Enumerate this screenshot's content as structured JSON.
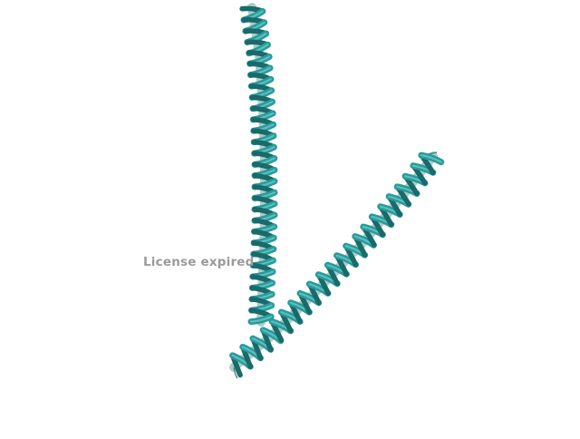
{
  "scene": {
    "background_color": "#ffffff",
    "ribbon_color": "#2a9a9a",
    "ribbon_shadow_color": "#1a6a6a",
    "ribbon_highlight_color": "#6fd0d0",
    "structures": [
      {
        "name": "helix-vertical"
      },
      {
        "name": "helix-diagonal"
      }
    ]
  },
  "watermark": {
    "text": "License expired",
    "color": "#9a9a9a"
  }
}
